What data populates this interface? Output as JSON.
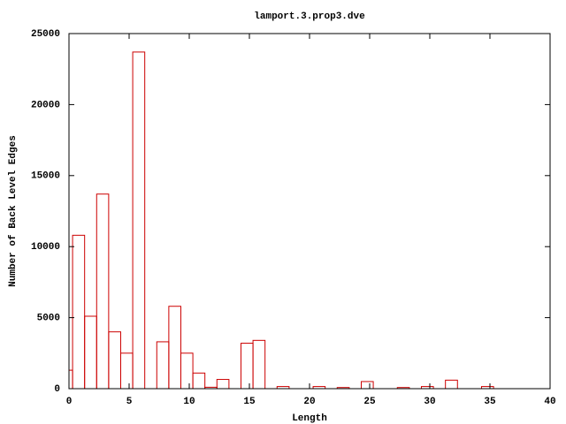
{
  "chart_data": {
    "type": "histogram",
    "title": "lamport.3.prop3.dve",
    "x_label": "Length",
    "y_label": "Number of Back Level Edges",
    "bins": [
      -0.7,
      0.3,
      1.3,
      2.3,
      3.3,
      4.3,
      5.3,
      6.3,
      7.3,
      8.3,
      9.3,
      10.3,
      11.3,
      12.3,
      13.3,
      14.3,
      15.3,
      16.3,
      17.3,
      18.3,
      19.3,
      20.3,
      21.3,
      22.3,
      23.3,
      24.3,
      25.3,
      26.3,
      27.3,
      28.3,
      29.3,
      30.3,
      31.3,
      32.3,
      33.3,
      34.3,
      35.3
    ],
    "values": [
      1300,
      10800,
      5100,
      13700,
      4000,
      2500,
      23700,
      0,
      3300,
      5800,
      2500,
      1100,
      100,
      650,
      0,
      3200,
      3400,
      0,
      150,
      0,
      0,
      150,
      0,
      80,
      0,
      500,
      0,
      0,
      80,
      0,
      150,
      0,
      600,
      0,
      0,
      150
    ],
    "color": "#cc0000",
    "xlim": [
      0,
      40
    ],
    "xticks": [
      0,
      5,
      10,
      15,
      20,
      25,
      30,
      35,
      40
    ],
    "ylim": [
      0,
      25000
    ],
    "yticks": [
      0,
      5000,
      10000,
      15000,
      20000,
      25000
    ]
  }
}
